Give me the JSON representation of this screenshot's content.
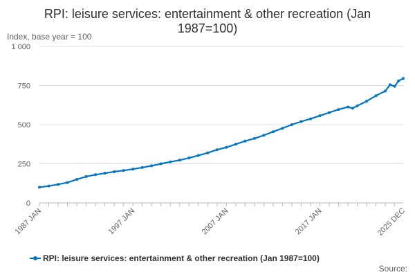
{
  "chart_data": {
    "type": "line",
    "title_lines": [
      "RPI: leisure services: entertainment & other recreation (Jan",
      "1987=100)"
    ],
    "ylabel": "Index, base year = 100",
    "ylim": [
      0,
      1000
    ],
    "y_ticks": [
      0,
      250,
      500,
      750,
      1000
    ],
    "y_tick_labels": [
      "0",
      "250",
      "500",
      "750",
      "1 000"
    ],
    "x_tick_labels": [
      "1987 JAN",
      "1997 JAN",
      "2007 JAN",
      "2017 JAN",
      "2025 DEC"
    ],
    "grid": true,
    "legend_position": "bottom",
    "series": [
      {
        "name": "RPI: leisure services: entertainment & other recreation (Jan 1987=100)",
        "color": "#0075c2",
        "points": [
          [
            "1987-01",
            100
          ],
          [
            "1988-01",
            108
          ],
          [
            "1989-01",
            118
          ],
          [
            "1990-01",
            130
          ],
          [
            "1991-01",
            150
          ],
          [
            "1992-01",
            168
          ],
          [
            "1993-01",
            180
          ],
          [
            "1994-01",
            190
          ],
          [
            "1995-01",
            199
          ],
          [
            "1996-01",
            207
          ],
          [
            "1997-01",
            216
          ],
          [
            "1998-01",
            226
          ],
          [
            "1999-01",
            237
          ],
          [
            "2000-01",
            250
          ],
          [
            "2001-01",
            262
          ],
          [
            "2002-01",
            273
          ],
          [
            "2003-01",
            287
          ],
          [
            "2004-01",
            303
          ],
          [
            "2005-01",
            320
          ],
          [
            "2006-01",
            340
          ],
          [
            "2007-01",
            355
          ],
          [
            "2008-01",
            375
          ],
          [
            "2009-01",
            395
          ],
          [
            "2010-01",
            412
          ],
          [
            "2011-01",
            432
          ],
          [
            "2012-01",
            455
          ],
          [
            "2013-01",
            477
          ],
          [
            "2014-01",
            500
          ],
          [
            "2015-01",
            520
          ],
          [
            "2016-01",
            537
          ],
          [
            "2017-01",
            557
          ],
          [
            "2018-01",
            577
          ],
          [
            "2019-01",
            597
          ],
          [
            "2020-01",
            613
          ],
          [
            "2020-07",
            605
          ],
          [
            "2021-01",
            620
          ],
          [
            "2022-01",
            650
          ],
          [
            "2023-01",
            685
          ],
          [
            "2024-01",
            715
          ],
          [
            "2024-07",
            755
          ],
          [
            "2025-01",
            745
          ],
          [
            "2025-06",
            780
          ],
          [
            "2025-12",
            795
          ]
        ]
      }
    ]
  },
  "footer": {
    "source_label": "Source:"
  }
}
